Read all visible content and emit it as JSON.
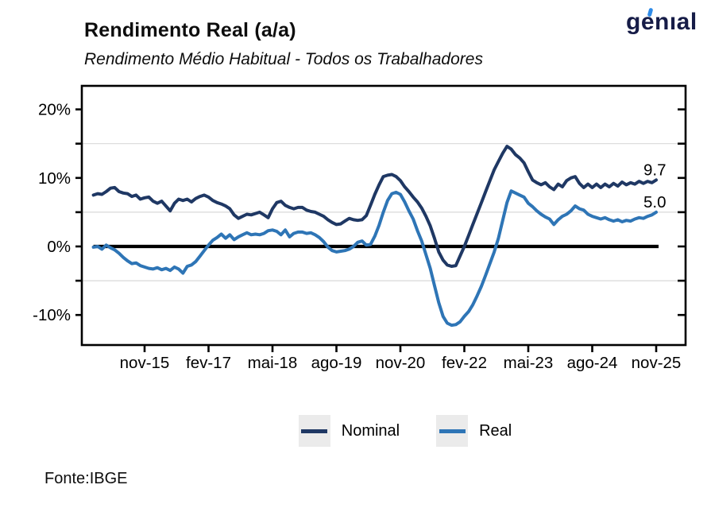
{
  "header": {
    "title": "Rendimento Real (a/a)",
    "subtitle": "Rendimento Médio Habitual - Todos os Trabalhadores",
    "logo_text": "genıal"
  },
  "chart_data": {
    "type": "line",
    "title": "Rendimento Real (a/a)",
    "subtitle": "Rendimento Médio Habitual - Todos os Trabalhadores",
    "unit": "%",
    "ylim": [
      -14.4,
      23.4
    ],
    "grid": "minor horizontal gridlines only",
    "zero_line": true,
    "legend_position": "bottom-center",
    "x_tick_labels": [
      "nov-15",
      "fev-17",
      "mai-18",
      "ago-19",
      "nov-20",
      "fev-22",
      "mai-23",
      "ago-24",
      "nov-25"
    ],
    "x_tick_start_index": 12,
    "x_tick_step_months": 15,
    "y_tick_labels": [
      {
        "label": "20%",
        "value": 20
      },
      {
        "label": "10%",
        "value": 10
      },
      {
        "label": "0%",
        "value": 0
      },
      {
        "label": "-10%",
        "value": -10
      }
    ],
    "y_axis_ticks": [
      20,
      15,
      10,
      5,
      0,
      -5,
      -10
    ],
    "y_minor_gridlines": [
      15,
      5,
      -5
    ],
    "series": [
      {
        "name": "Nominal",
        "color": "#1F3864",
        "end_label": "9.7",
        "values": [
          7.5,
          7.7,
          7.6,
          8.0,
          8.5,
          8.6,
          8.0,
          7.8,
          7.7,
          7.3,
          7.5,
          6.9,
          7.1,
          7.2,
          6.6,
          6.3,
          6.6,
          5.9,
          5.2,
          6.3,
          6.9,
          6.7,
          6.9,
          6.5,
          7.0,
          7.3,
          7.5,
          7.2,
          6.7,
          6.4,
          6.2,
          5.9,
          5.5,
          4.6,
          4.1,
          4.4,
          4.7,
          4.6,
          4.8,
          5.0,
          4.6,
          4.2,
          5.5,
          6.4,
          6.6,
          6.0,
          5.7,
          5.5,
          5.7,
          5.7,
          5.3,
          5.1,
          5.0,
          4.7,
          4.4,
          3.9,
          3.5,
          3.2,
          3.3,
          3.7,
          4.1,
          3.9,
          3.8,
          3.9,
          4.5,
          6.0,
          7.6,
          9.0,
          10.2,
          10.4,
          10.5,
          10.2,
          9.6,
          8.7,
          8.0,
          7.2,
          6.5,
          5.6,
          4.4,
          3.0,
          1.2,
          -0.8,
          -2.0,
          -2.7,
          -2.9,
          -2.8,
          -1.4,
          0.0,
          1.6,
          3.2,
          4.8,
          6.4,
          8.0,
          9.6,
          11.2,
          12.4,
          13.6,
          14.6,
          14.2,
          13.4,
          12.9,
          12.2,
          10.9,
          9.7,
          9.3,
          9.0,
          9.3,
          8.7,
          8.3,
          9.1,
          8.7,
          9.6,
          10.0,
          10.2,
          9.2,
          8.6,
          9.1,
          8.6,
          9.1,
          8.6,
          9.1,
          8.7,
          9.2,
          8.8,
          9.4,
          9.0,
          9.3,
          9.1,
          9.5,
          9.2,
          9.5,
          9.3,
          9.7
        ]
      },
      {
        "name": "Real",
        "color": "#2E75B6",
        "end_label": "5.0",
        "values": [
          -0.1,
          0.0,
          -0.4,
          0.2,
          -0.2,
          -0.5,
          -1.0,
          -1.6,
          -2.1,
          -2.5,
          -2.4,
          -2.8,
          -3.0,
          -3.2,
          -3.3,
          -3.1,
          -3.4,
          -3.2,
          -3.5,
          -3.0,
          -3.3,
          -3.9,
          -2.9,
          -2.7,
          -2.2,
          -1.4,
          -0.6,
          0.2,
          0.9,
          1.3,
          1.8,
          1.2,
          1.7,
          1.0,
          1.4,
          1.7,
          2.0,
          1.7,
          1.8,
          1.7,
          1.9,
          2.3,
          2.4,
          2.2,
          1.7,
          2.4,
          1.4,
          1.9,
          2.1,
          2.1,
          1.9,
          2.0,
          1.7,
          1.3,
          0.7,
          -0.1,
          -0.6,
          -0.8,
          -0.7,
          -0.6,
          -0.4,
          0.0,
          0.6,
          0.8,
          0.2,
          0.3,
          1.5,
          3.1,
          5.0,
          6.7,
          7.7,
          7.9,
          7.6,
          6.5,
          5.2,
          4.0,
          2.3,
          0.8,
          -1.2,
          -3.2,
          -5.7,
          -8.2,
          -10.2,
          -11.2,
          -11.5,
          -11.4,
          -11.0,
          -10.2,
          -9.5,
          -8.5,
          -7.2,
          -5.8,
          -4.2,
          -2.5,
          -0.8,
          1.2,
          3.8,
          6.4,
          8.1,
          7.8,
          7.5,
          7.2,
          6.3,
          5.8,
          5.2,
          4.7,
          4.3,
          4.0,
          3.2,
          3.9,
          4.4,
          4.7,
          5.2,
          5.9,
          5.5,
          5.3,
          4.7,
          4.4,
          4.2,
          4.0,
          4.2,
          3.9,
          3.7,
          3.9,
          3.6,
          3.8,
          3.7,
          4.0,
          4.2,
          4.1,
          4.4,
          4.6,
          5.0
        ]
      }
    ]
  },
  "legend": {
    "items": [
      {
        "label": "Nominal",
        "color": "#1F3864"
      },
      {
        "label": "Real",
        "color": "#2E75B6"
      }
    ]
  },
  "footer": {
    "source": "Fonte:IBGE"
  },
  "colors": {
    "nominal": "#1F3864",
    "real": "#2E75B6",
    "gridline": "#D9D9D9",
    "frame": "#000000",
    "legend_swatch_bg": "#EBEBEB",
    "logo_navy": "#161C47",
    "logo_accent_blue": "#2E8BE8"
  }
}
